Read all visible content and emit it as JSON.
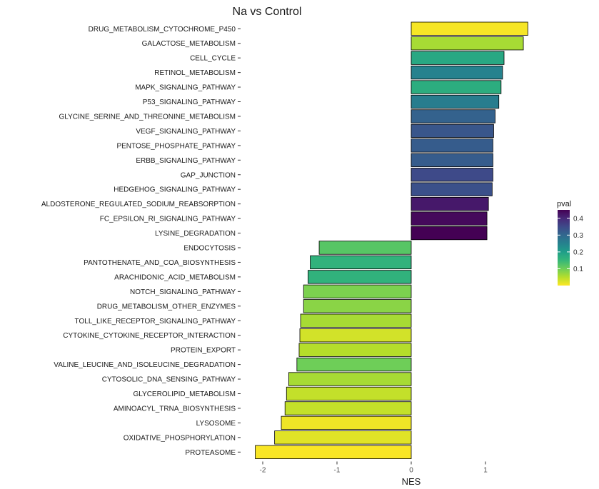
{
  "chart_data": {
    "type": "bar",
    "orientation": "horizontal",
    "title": "Na vs Control",
    "xlabel": "NES",
    "ylabel": "",
    "xlim": [
      -2.1,
      1.6
    ],
    "xticks": [
      -2,
      -1,
      0,
      1
    ],
    "grid": false,
    "legend": {
      "title": "pval",
      "position": "right",
      "ticks": [
        0.1,
        0.2,
        0.3,
        0.4
      ],
      "range": [
        0.0,
        0.45
      ]
    },
    "colors": {
      "viridis": [
        "#440154",
        "#482878",
        "#3e4a89",
        "#31688e",
        "#26828e",
        "#1f9e89",
        "#35b779",
        "#6ece58",
        "#b5de2b",
        "#fde725"
      ]
    },
    "bars": [
      {
        "label": "DRUG_METABOLISM_CYTOCHROME_P450",
        "nes": 1.57,
        "pval": 0.005
      },
      {
        "label": "GALACTOSE_METABOLISM",
        "nes": 1.51,
        "pval": 0.06
      },
      {
        "label": "CELL_CYCLE",
        "nes": 1.25,
        "pval": 0.18
      },
      {
        "label": "RETINOL_METABOLISM",
        "nes": 1.23,
        "pval": 0.25
      },
      {
        "label": "MAPK_SIGNALING_PATHWAY",
        "nes": 1.21,
        "pval": 0.17
      },
      {
        "label": "P53_SIGNALING_PATHWAY",
        "nes": 1.18,
        "pval": 0.26
      },
      {
        "label": "GLYCINE_SERINE_AND_THREONINE_METABOLISM",
        "nes": 1.13,
        "pval": 0.31
      },
      {
        "label": "VEGF_SIGNALING_PATHWAY",
        "nes": 1.11,
        "pval": 0.33
      },
      {
        "label": "PENTOSE_PHOSPHATE_PATHWAY",
        "nes": 1.1,
        "pval": 0.32
      },
      {
        "label": "ERBB_SIGNALING_PATHWAY",
        "nes": 1.1,
        "pval": 0.32
      },
      {
        "label": "GAP_JUNCTION",
        "nes": 1.1,
        "pval": 0.35
      },
      {
        "label": "HEDGEHOG_SIGNALING_PATHWAY",
        "nes": 1.09,
        "pval": 0.34
      },
      {
        "label": "ALDOSTERONE_REGULATED_SODIUM_REABSORPTION",
        "nes": 1.04,
        "pval": 0.42
      },
      {
        "label": "FC_EPSILON_RI_SIGNALING_PATHWAY",
        "nes": 1.02,
        "pval": 0.44
      },
      {
        "label": "LYSINE_DEGRADATION",
        "nes": 1.02,
        "pval": 0.45
      },
      {
        "label": "ENDOCYTOSIS",
        "nes": -1.24,
        "pval": 0.12
      },
      {
        "label": "PANTOTHENATE_AND_COA_BIOSYNTHESIS",
        "nes": -1.36,
        "pval": 0.16
      },
      {
        "label": "ARACHIDONIC_ACID_METABOLISM",
        "nes": -1.39,
        "pval": 0.16
      },
      {
        "label": "NOTCH_SIGNALING_PATHWAY",
        "nes": -1.45,
        "pval": 0.09
      },
      {
        "label": "DRUG_METABOLISM_OTHER_ENZYMES",
        "nes": -1.45,
        "pval": 0.08
      },
      {
        "label": "TOLL_LIKE_RECEPTOR_SIGNALING_PATHWAY",
        "nes": -1.49,
        "pval": 0.06
      },
      {
        "label": "CYTOKINE_CYTOKINE_RECEPTOR_INTERACTION",
        "nes": -1.5,
        "pval": 0.03
      },
      {
        "label": "PROTEIN_EXPORT",
        "nes": -1.51,
        "pval": 0.05
      },
      {
        "label": "VALINE_LEUCINE_AND_ISOLEUCINE_DEGRADATION",
        "nes": -1.54,
        "pval": 0.1
      },
      {
        "label": "CYTOSOLIC_DNA_SENSING_PATHWAY",
        "nes": -1.65,
        "pval": 0.06
      },
      {
        "label": "GLYCEROLIPID_METABOLISM",
        "nes": -1.68,
        "pval": 0.04
      },
      {
        "label": "AMINOACYL_TRNA_BIOSYNTHESIS",
        "nes": -1.7,
        "pval": 0.04
      },
      {
        "label": "LYSOSOME",
        "nes": -1.75,
        "pval": 0.01
      },
      {
        "label": "OXIDATIVE_PHOSPHORYLATION",
        "nes": -1.84,
        "pval": 0.02
      },
      {
        "label": "PROTEASOME",
        "nes": -2.1,
        "pval": 0.003
      }
    ]
  }
}
